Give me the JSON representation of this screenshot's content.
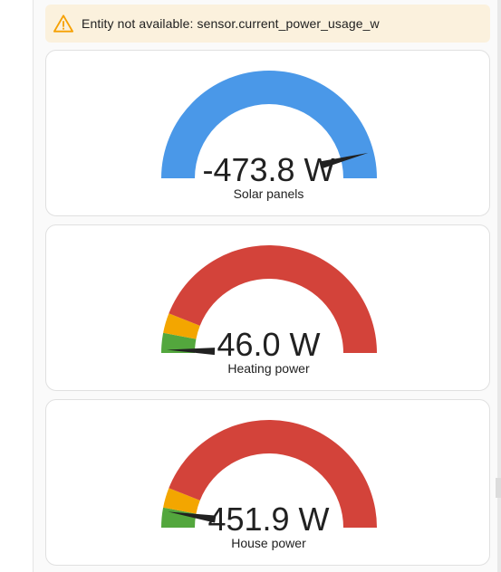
{
  "warning": {
    "icon": "warning-triangle-icon",
    "text": "Entity not available: sensor.current_power_usage_w",
    "background": "#fbf1dd",
    "icon_color": "#f6a000"
  },
  "gauges": [
    {
      "value_text": "-473.8 W",
      "label": "Solar panels",
      "needle_fraction": 0.92,
      "segments": [
        {
          "from": 0,
          "to": 1,
          "color": "#4a98e8"
        }
      ]
    },
    {
      "value_text": "46.0 W",
      "label": "Heating power",
      "needle_fraction": 0.01,
      "segments": [
        {
          "from": 0,
          "to": 0.06,
          "color": "#53a73d"
        },
        {
          "from": 0.06,
          "to": 0.12,
          "color": "#f3a600"
        },
        {
          "from": 0.12,
          "to": 1,
          "color": "#d3433a"
        }
      ]
    },
    {
      "value_text": "451.9 W",
      "label": "House power",
      "needle_fraction": 0.05,
      "segments": [
        {
          "from": 0,
          "to": 0.06,
          "color": "#53a73d"
        },
        {
          "from": 0.06,
          "to": 0.12,
          "color": "#f3a600"
        },
        {
          "from": 0.12,
          "to": 1,
          "color": "#d3433a"
        }
      ]
    }
  ],
  "colors": {
    "needle": "#212121",
    "card_border": "#e0e0e0"
  }
}
